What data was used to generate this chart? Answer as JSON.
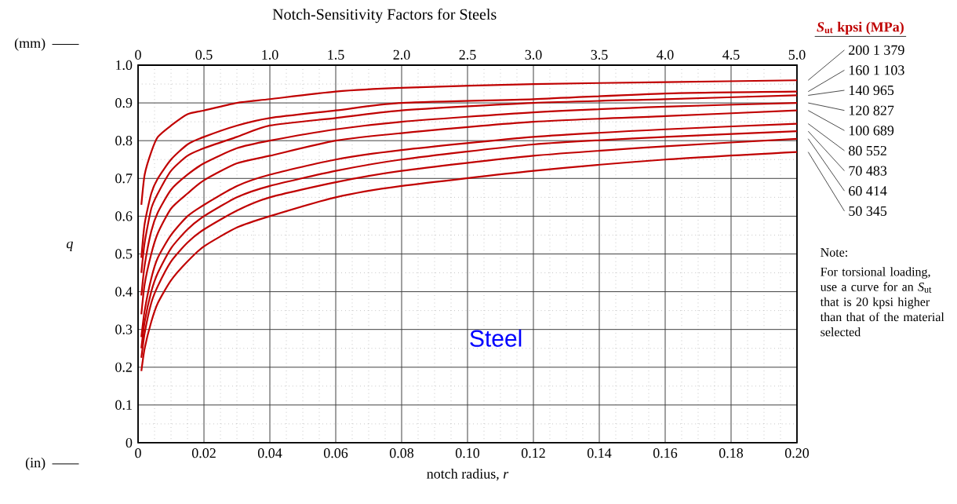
{
  "chart_data": {
    "type": "line",
    "title": "Notch-Sensitivity Factors for Steels",
    "xlabel": "notch radius,  *r*",
    "ylabel": "*q*",
    "legend_title": "*S*$_{ut}$  kpsi  (MPa)",
    "x": [
      0.001,
      0.002,
      0.004,
      0.006,
      0.01,
      0.015,
      0.02,
      0.03,
      0.04,
      0.06,
      0.08,
      0.12,
      0.16,
      0.2
    ],
    "series": [
      {
        "name": "200   1 379",
        "color": "#c00000",
        "values": [
          0.63,
          0.71,
          0.77,
          0.81,
          0.84,
          0.87,
          0.88,
          0.9,
          0.91,
          0.93,
          0.94,
          0.95,
          0.955,
          0.96
        ]
      },
      {
        "name": "160   1 103",
        "color": "#c00000",
        "values": [
          0.49,
          0.58,
          0.66,
          0.7,
          0.75,
          0.79,
          0.81,
          0.84,
          0.86,
          0.88,
          0.9,
          0.91,
          0.925,
          0.93
        ]
      },
      {
        "name": "140   965",
        "color": "#c00000",
        "values": [
          0.45,
          0.53,
          0.62,
          0.66,
          0.72,
          0.76,
          0.78,
          0.81,
          0.84,
          0.86,
          0.88,
          0.9,
          0.91,
          0.92
        ]
      },
      {
        "name": "120   827",
        "color": "#c00000",
        "values": [
          0.39,
          0.47,
          0.56,
          0.61,
          0.67,
          0.71,
          0.74,
          0.78,
          0.8,
          0.83,
          0.85,
          0.875,
          0.89,
          0.9
        ]
      },
      {
        "name": "100   689",
        "color": "#c00000",
        "values": [
          0.34,
          0.42,
          0.5,
          0.555,
          0.62,
          0.66,
          0.695,
          0.74,
          0.76,
          0.8,
          0.82,
          0.85,
          0.865,
          0.88
        ]
      },
      {
        "name": "80     552",
        "color": "#c00000",
        "values": [
          0.28,
          0.35,
          0.435,
          0.49,
          0.55,
          0.6,
          0.63,
          0.68,
          0.71,
          0.75,
          0.775,
          0.81,
          0.83,
          0.845
        ]
      },
      {
        "name": "70     483",
        "color": "#c00000",
        "values": [
          0.25,
          0.32,
          0.4,
          0.45,
          0.515,
          0.565,
          0.6,
          0.65,
          0.68,
          0.72,
          0.75,
          0.79,
          0.81,
          0.825
        ]
      },
      {
        "name": "60     414",
        "color": "#c00000",
        "values": [
          0.225,
          0.29,
          0.37,
          0.415,
          0.48,
          0.53,
          0.565,
          0.615,
          0.65,
          0.69,
          0.72,
          0.76,
          0.785,
          0.805
        ]
      },
      {
        "name": "50     345",
        "color": "#c00000",
        "values": [
          0.19,
          0.25,
          0.32,
          0.37,
          0.43,
          0.48,
          0.52,
          0.57,
          0.6,
          0.65,
          0.68,
          0.72,
          0.75,
          0.77
        ]
      }
    ],
    "xlim": [
      0,
      0.2
    ],
    "ylim": [
      0,
      1
    ],
    "xticks": [
      0,
      0.02,
      0.04,
      0.06,
      0.08,
      {
        "value": 0.1,
        "label": "0.10"
      },
      0.12,
      0.14,
      0.16,
      0.18,
      {
        "value": 0.2,
        "label": "0.20"
      }
    ],
    "yticks": [
      0,
      0.1,
      0.2,
      0.3,
      0.4,
      0.5,
      0.6,
      0.7,
      0.8,
      0.9,
      {
        "value": 1,
        "label": "1.0"
      }
    ],
    "x2lim": [
      0,
      5
    ],
    "x2ticks": [
      0,
      0.5,
      {
        "value": 1,
        "label": "1.0"
      },
      1.5,
      {
        "value": 2,
        "label": "2.0"
      },
      2.5,
      {
        "value": 3,
        "label": "3.0"
      },
      3.5,
      {
        "value": 4,
        "label": "4.0"
      },
      4.5,
      {
        "value": 5,
        "label": "5.0"
      }
    ],
    "grid": true,
    "legend": "right",
    "annotations": [
      "(mm)",
      "(in)",
      "Steel",
      "Note:",
      "For torsional loading, use a curve for an *S*$_{ut}$ that is 20 kpsi higher than that of the material selected"
    ]
  }
}
